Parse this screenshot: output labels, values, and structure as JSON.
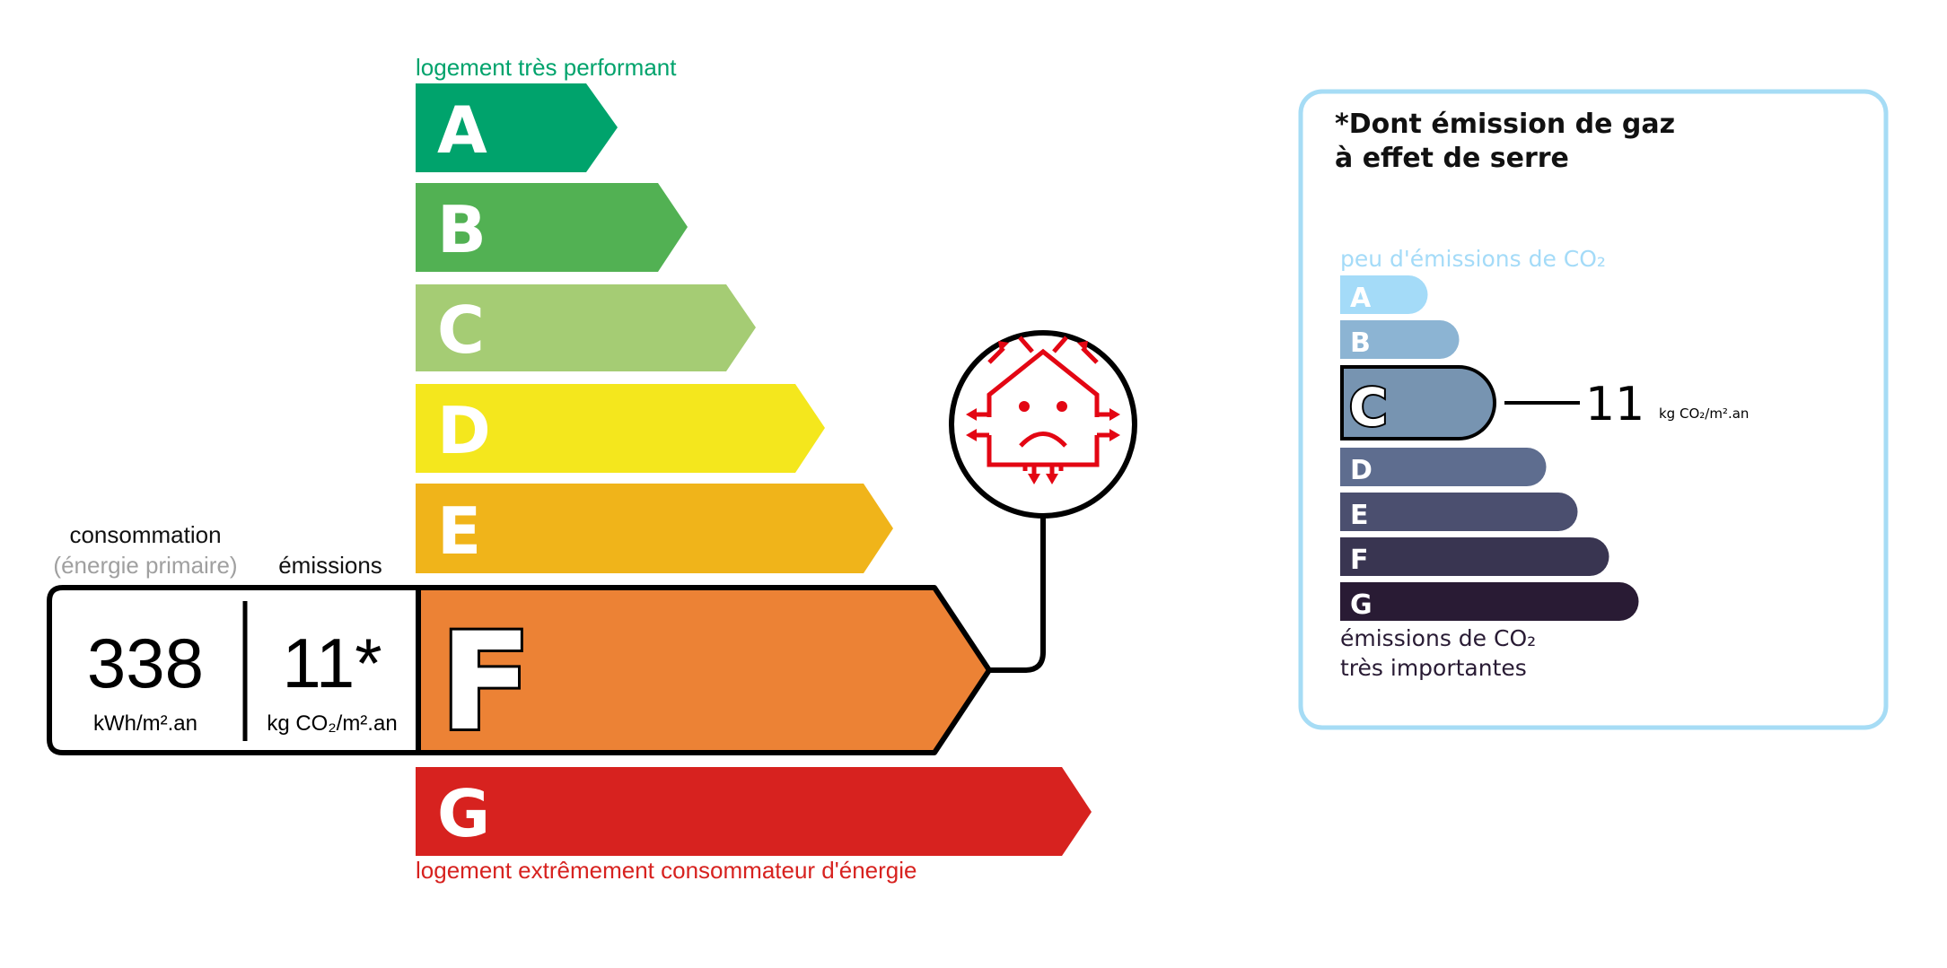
{
  "energy_label": {
    "top_label": "logement très performant",
    "bottom_label": "logement extrêmement consommateur d'énergie",
    "classes": [
      {
        "letter": "A",
        "color": "#00a36c"
      },
      {
        "letter": "B",
        "color": "#52b153"
      },
      {
        "letter": "C",
        "color": "#a5cc74"
      },
      {
        "letter": "D",
        "color": "#f4e71d"
      },
      {
        "letter": "E",
        "color": "#f0b41a"
      },
      {
        "letter": "F",
        "color": "#ec8235"
      },
      {
        "letter": "G",
        "color": "#d7221f"
      }
    ],
    "current_class": "F",
    "consumption_label": "consommation",
    "consumption_sublabel": "(énergie primaire)",
    "emissions_label": "émissions",
    "consumption_value": "338",
    "consumption_unit": "kWh/m².an",
    "emissions_value": "11*",
    "emissions_unit": "kg CO₂/m².an",
    "icon": "poorly-insulated-house-sad-face-icon",
    "icon_color": "#e30613"
  },
  "ghg_panel": {
    "title_line1": "*Dont émission de gaz",
    "title_line2": "à effet de serre",
    "top_label": "peu d'émissions de CO₂",
    "bottom_label_line1": "émissions de CO₂",
    "bottom_label_line2": "très importantes",
    "border_color": "#a6dcf5",
    "classes": [
      {
        "letter": "A",
        "color": "#a4dbf8"
      },
      {
        "letter": "B",
        "color": "#8cb4d3"
      },
      {
        "letter": "C",
        "color": "#7794b1"
      },
      {
        "letter": "D",
        "color": "#5e6d8f"
      },
      {
        "letter": "E",
        "color": "#4b4f6f"
      },
      {
        "letter": "F",
        "color": "#393551"
      },
      {
        "letter": "G",
        "color": "#291b34"
      }
    ],
    "current_class": "C",
    "value": "11",
    "unit": "kg CO₂/m².an"
  }
}
